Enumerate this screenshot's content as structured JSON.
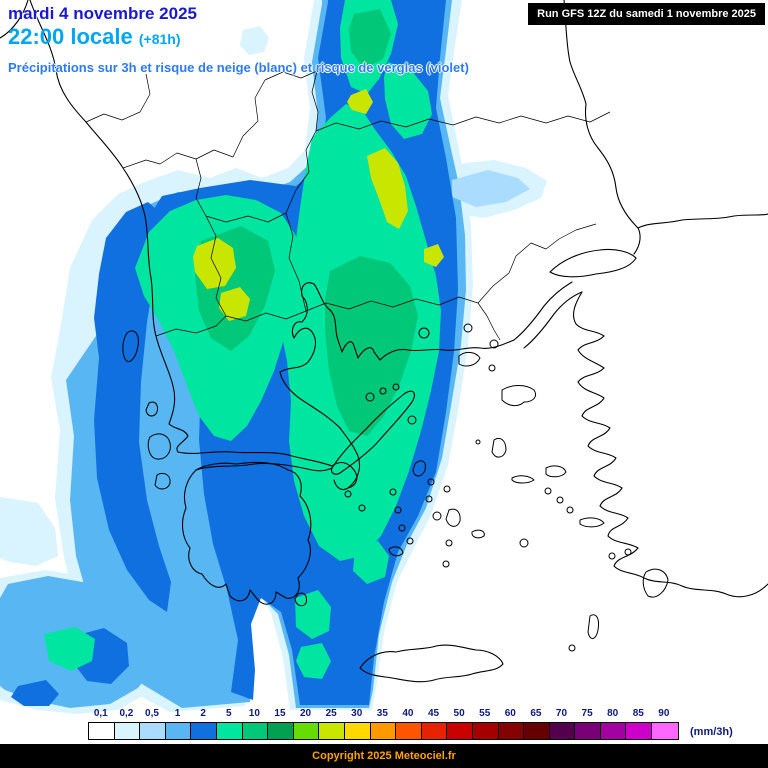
{
  "header": {
    "date": "mardi 4 novembre 2025",
    "time": "22:00 locale",
    "offset": "(+81h)",
    "subtitle": "Précipitations sur 3h et risque de neige (blanc) et risque de verglas (violet)",
    "run": "Run GFS 12Z du samedi 1 novembre 2025"
  },
  "legend": {
    "values": [
      "0,1",
      "0,2",
      "0,5",
      "1",
      "2",
      "5",
      "10",
      "15",
      "20",
      "25",
      "30",
      "35",
      "40",
      "45",
      "50",
      "55",
      "60",
      "65",
      "70",
      "75",
      "80",
      "85",
      "90"
    ],
    "colors": [
      "#FFFFFF",
      "#D9F3FF",
      "#AADCFF",
      "#58B6F2",
      "#1170E0",
      "#00E6A0",
      "#00C878",
      "#00A050",
      "#66DD00",
      "#C8E600",
      "#FFD800",
      "#FF9900",
      "#FF5500",
      "#E62200",
      "#C80000",
      "#A50000",
      "#850000",
      "#660000",
      "#55004F",
      "#7A0078",
      "#A300A0",
      "#CC00C8",
      "#FF66FF"
    ],
    "unit": "(mm/3h)"
  },
  "footer": {
    "copyright": "Copyright 2025 Meteociel.fr"
  },
  "colors": {
    "date_text": "#1a1acc",
    "time_text": "#00a6f0",
    "subtitle_text": "#2d7bf0",
    "run_bg": "#000000",
    "run_text": "#ffffff",
    "legend_text": "#0d1a7a",
    "copyright_text": "#ffa200",
    "footer_bg": "#000000"
  }
}
